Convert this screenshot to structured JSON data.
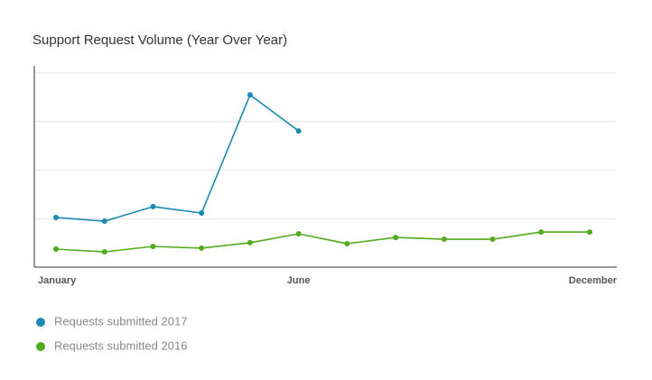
{
  "chart_data": {
    "type": "line",
    "title": "Support Request Volume (Year Over Year)",
    "categories": [
      "January",
      null,
      null,
      null,
      null,
      "June",
      null,
      null,
      null,
      null,
      null,
      "December"
    ],
    "series": [
      {
        "name": "Requests submitted 2017",
        "color": "#1a8ab2",
        "values": [
          25.6,
          23.7,
          31.2,
          27.9,
          88.8,
          70.2,
          null,
          null,
          null,
          null,
          null,
          null
        ]
      },
      {
        "name": "Requests submitted 2016",
        "color": "#52aa1c",
        "values": [
          9.3,
          7.9,
          10.7,
          9.8,
          12.6,
          17.2,
          12.1,
          15.3,
          14.4,
          14.4,
          18.1,
          18.1
        ]
      }
    ],
    "ylim": [
      0,
      100
    ],
    "yticks": [
      0,
      25,
      50,
      75,
      100
    ],
    "grid": true
  }
}
